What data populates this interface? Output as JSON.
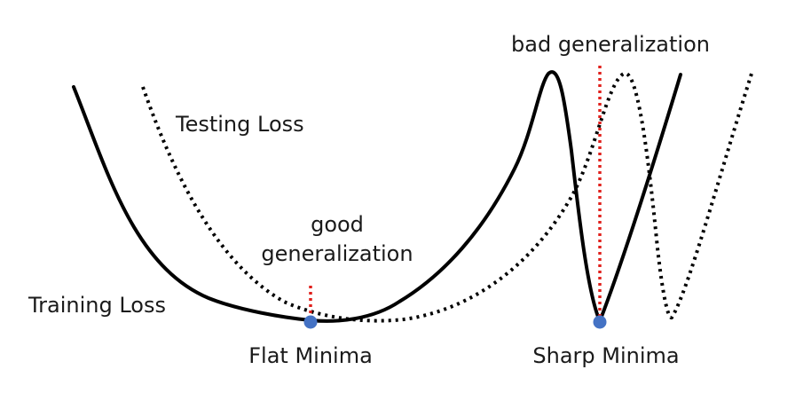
{
  "labels": {
    "testing_loss": "Testing Loss",
    "training_loss": "Training Loss",
    "good_generalization_line1": "good",
    "good_generalization_line2": "generalization",
    "bad_generalization": "bad generalization",
    "flat_minima": "Flat Minima",
    "sharp_minima": "Sharp Minima"
  },
  "colors": {
    "training_curve": "#000000",
    "testing_curve": "#000000",
    "marker_line": "#e0201c",
    "minima_dot": "#4472c4",
    "text": "#1a1a1a"
  }
}
